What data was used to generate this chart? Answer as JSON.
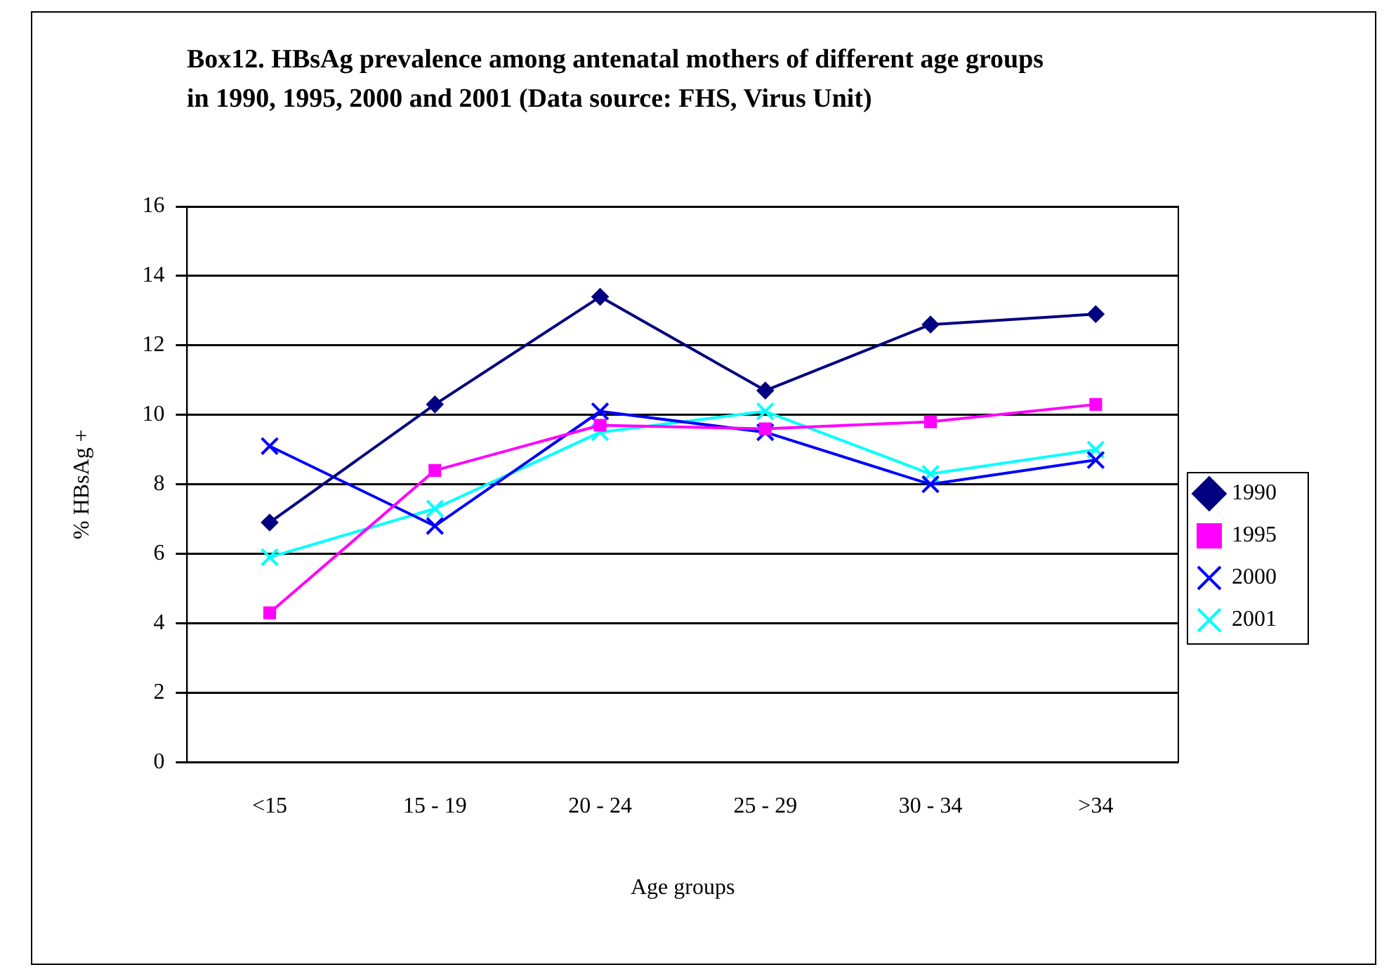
{
  "chart_data": {
    "type": "line",
    "title": "Box12. HBsAg prevalence among antenatal mothers of different age groups in 1990, 1995, 2000 and 2001 (Data source: FHS, Virus Unit)",
    "xlabel": "Age groups",
    "ylabel": "% HBsAg +",
    "categories": [
      "<15",
      "15 - 19",
      "20 - 24",
      "25 - 29",
      "30 - 34",
      ">34"
    ],
    "series": [
      {
        "name": "1990",
        "color": "#000080",
        "marker": "diamond",
        "values": [
          6.9,
          10.3,
          13.4,
          10.7,
          12.6,
          12.9
        ]
      },
      {
        "name": "1995",
        "color": "#ff00ff",
        "marker": "square",
        "values": [
          4.3,
          8.4,
          9.7,
          9.6,
          9.8,
          10.3
        ]
      },
      {
        "name": "2000",
        "color": "#0000ff",
        "marker": "cross",
        "values": [
          9.1,
          6.8,
          10.1,
          9.5,
          8.0,
          8.7
        ]
      },
      {
        "name": "2001",
        "color": "#00ffff",
        "marker": "cross",
        "values": [
          5.9,
          7.3,
          9.5,
          10.1,
          8.3,
          9.0
        ]
      }
    ],
    "ylim": [
      0,
      16
    ],
    "yticks": [
      0,
      2,
      4,
      6,
      8,
      10,
      12,
      14,
      16
    ],
    "grid": "y",
    "legend": "right"
  }
}
